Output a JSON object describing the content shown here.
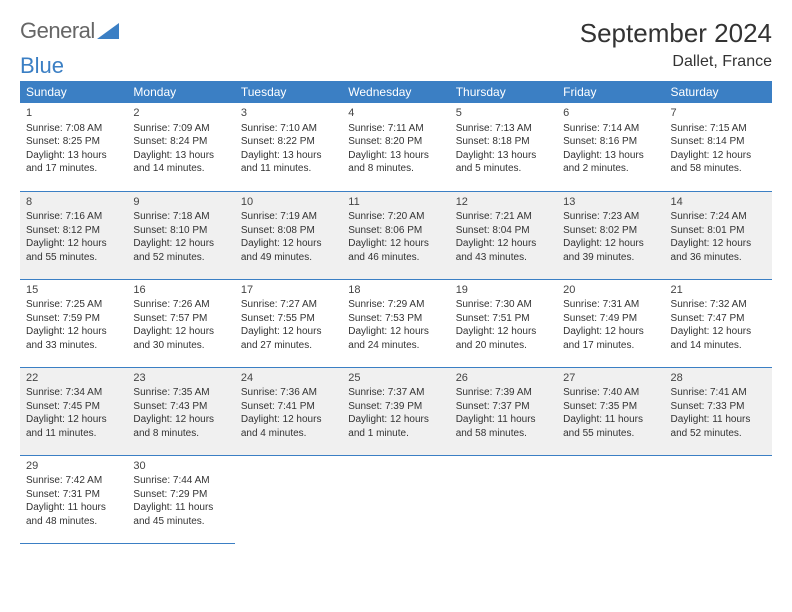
{
  "logo": {
    "text1": "General",
    "text2": "Blue"
  },
  "title": "September 2024",
  "location": "Dallet, France",
  "colors": {
    "header_bg": "#3b7fc4",
    "header_text": "#ffffff",
    "row_alt_bg": "#f0f0f0",
    "border": "#3b7fc4",
    "text": "#333333"
  },
  "day_headers": [
    "Sunday",
    "Monday",
    "Tuesday",
    "Wednesday",
    "Thursday",
    "Friday",
    "Saturday"
  ],
  "weeks": [
    {
      "alt": false,
      "days": [
        {
          "n": "1",
          "sr": "Sunrise: 7:08 AM",
          "ss": "Sunset: 8:25 PM",
          "d1": "Daylight: 13 hours",
          "d2": "and 17 minutes."
        },
        {
          "n": "2",
          "sr": "Sunrise: 7:09 AM",
          "ss": "Sunset: 8:24 PM",
          "d1": "Daylight: 13 hours",
          "d2": "and 14 minutes."
        },
        {
          "n": "3",
          "sr": "Sunrise: 7:10 AM",
          "ss": "Sunset: 8:22 PM",
          "d1": "Daylight: 13 hours",
          "d2": "and 11 minutes."
        },
        {
          "n": "4",
          "sr": "Sunrise: 7:11 AM",
          "ss": "Sunset: 8:20 PM",
          "d1": "Daylight: 13 hours",
          "d2": "and 8 minutes."
        },
        {
          "n": "5",
          "sr": "Sunrise: 7:13 AM",
          "ss": "Sunset: 8:18 PM",
          "d1": "Daylight: 13 hours",
          "d2": "and 5 minutes."
        },
        {
          "n": "6",
          "sr": "Sunrise: 7:14 AM",
          "ss": "Sunset: 8:16 PM",
          "d1": "Daylight: 13 hours",
          "d2": "and 2 minutes."
        },
        {
          "n": "7",
          "sr": "Sunrise: 7:15 AM",
          "ss": "Sunset: 8:14 PM",
          "d1": "Daylight: 12 hours",
          "d2": "and 58 minutes."
        }
      ]
    },
    {
      "alt": true,
      "days": [
        {
          "n": "8",
          "sr": "Sunrise: 7:16 AM",
          "ss": "Sunset: 8:12 PM",
          "d1": "Daylight: 12 hours",
          "d2": "and 55 minutes."
        },
        {
          "n": "9",
          "sr": "Sunrise: 7:18 AM",
          "ss": "Sunset: 8:10 PM",
          "d1": "Daylight: 12 hours",
          "d2": "and 52 minutes."
        },
        {
          "n": "10",
          "sr": "Sunrise: 7:19 AM",
          "ss": "Sunset: 8:08 PM",
          "d1": "Daylight: 12 hours",
          "d2": "and 49 minutes."
        },
        {
          "n": "11",
          "sr": "Sunrise: 7:20 AM",
          "ss": "Sunset: 8:06 PM",
          "d1": "Daylight: 12 hours",
          "d2": "and 46 minutes."
        },
        {
          "n": "12",
          "sr": "Sunrise: 7:21 AM",
          "ss": "Sunset: 8:04 PM",
          "d1": "Daylight: 12 hours",
          "d2": "and 43 minutes."
        },
        {
          "n": "13",
          "sr": "Sunrise: 7:23 AM",
          "ss": "Sunset: 8:02 PM",
          "d1": "Daylight: 12 hours",
          "d2": "and 39 minutes."
        },
        {
          "n": "14",
          "sr": "Sunrise: 7:24 AM",
          "ss": "Sunset: 8:01 PM",
          "d1": "Daylight: 12 hours",
          "d2": "and 36 minutes."
        }
      ]
    },
    {
      "alt": false,
      "days": [
        {
          "n": "15",
          "sr": "Sunrise: 7:25 AM",
          "ss": "Sunset: 7:59 PM",
          "d1": "Daylight: 12 hours",
          "d2": "and 33 minutes."
        },
        {
          "n": "16",
          "sr": "Sunrise: 7:26 AM",
          "ss": "Sunset: 7:57 PM",
          "d1": "Daylight: 12 hours",
          "d2": "and 30 minutes."
        },
        {
          "n": "17",
          "sr": "Sunrise: 7:27 AM",
          "ss": "Sunset: 7:55 PM",
          "d1": "Daylight: 12 hours",
          "d2": "and 27 minutes."
        },
        {
          "n": "18",
          "sr": "Sunrise: 7:29 AM",
          "ss": "Sunset: 7:53 PM",
          "d1": "Daylight: 12 hours",
          "d2": "and 24 minutes."
        },
        {
          "n": "19",
          "sr": "Sunrise: 7:30 AM",
          "ss": "Sunset: 7:51 PM",
          "d1": "Daylight: 12 hours",
          "d2": "and 20 minutes."
        },
        {
          "n": "20",
          "sr": "Sunrise: 7:31 AM",
          "ss": "Sunset: 7:49 PM",
          "d1": "Daylight: 12 hours",
          "d2": "and 17 minutes."
        },
        {
          "n": "21",
          "sr": "Sunrise: 7:32 AM",
          "ss": "Sunset: 7:47 PM",
          "d1": "Daylight: 12 hours",
          "d2": "and 14 minutes."
        }
      ]
    },
    {
      "alt": true,
      "days": [
        {
          "n": "22",
          "sr": "Sunrise: 7:34 AM",
          "ss": "Sunset: 7:45 PM",
          "d1": "Daylight: 12 hours",
          "d2": "and 11 minutes."
        },
        {
          "n": "23",
          "sr": "Sunrise: 7:35 AM",
          "ss": "Sunset: 7:43 PM",
          "d1": "Daylight: 12 hours",
          "d2": "and 8 minutes."
        },
        {
          "n": "24",
          "sr": "Sunrise: 7:36 AM",
          "ss": "Sunset: 7:41 PM",
          "d1": "Daylight: 12 hours",
          "d2": "and 4 minutes."
        },
        {
          "n": "25",
          "sr": "Sunrise: 7:37 AM",
          "ss": "Sunset: 7:39 PM",
          "d1": "Daylight: 12 hours",
          "d2": "and 1 minute."
        },
        {
          "n": "26",
          "sr": "Sunrise: 7:39 AM",
          "ss": "Sunset: 7:37 PM",
          "d1": "Daylight: 11 hours",
          "d2": "and 58 minutes."
        },
        {
          "n": "27",
          "sr": "Sunrise: 7:40 AM",
          "ss": "Sunset: 7:35 PM",
          "d1": "Daylight: 11 hours",
          "d2": "and 55 minutes."
        },
        {
          "n": "28",
          "sr": "Sunrise: 7:41 AM",
          "ss": "Sunset: 7:33 PM",
          "d1": "Daylight: 11 hours",
          "d2": "and 52 minutes."
        }
      ]
    },
    {
      "alt": false,
      "days": [
        {
          "n": "29",
          "sr": "Sunrise: 7:42 AM",
          "ss": "Sunset: 7:31 PM",
          "d1": "Daylight: 11 hours",
          "d2": "and 48 minutes."
        },
        {
          "n": "30",
          "sr": "Sunrise: 7:44 AM",
          "ss": "Sunset: 7:29 PM",
          "d1": "Daylight: 11 hours",
          "d2": "and 45 minutes."
        },
        null,
        null,
        null,
        null,
        null
      ]
    }
  ]
}
